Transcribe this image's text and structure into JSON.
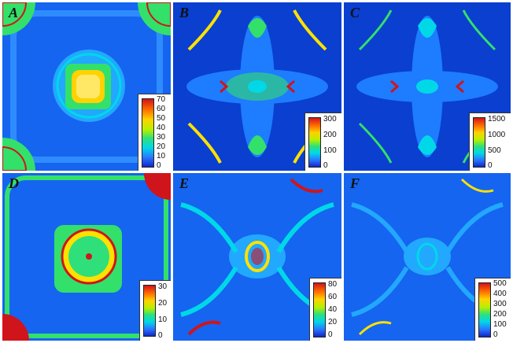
{
  "panels": [
    {
      "label": "A",
      "ticks": [
        "70",
        "60",
        "50",
        "40",
        "30",
        "20",
        "10",
        "0"
      ]
    },
    {
      "label": "B",
      "ticks": [
        "300",
        "200",
        "100",
        "0"
      ]
    },
    {
      "label": "C",
      "ticks": [
        "1500",
        "1000",
        "500",
        "0"
      ]
    },
    {
      "label": "D",
      "ticks": [
        "30",
        "20",
        "10",
        "0"
      ]
    },
    {
      "label": "E",
      "ticks": [
        "80",
        "60",
        "40",
        "20",
        "0"
      ]
    },
    {
      "label": "F",
      "ticks": [
        "500",
        "400",
        "300",
        "200",
        "100",
        "0"
      ]
    }
  ],
  "colors": {
    "background_field": "#0a3fd0",
    "mid_field": "#1e7cff",
    "cyan": "#00d8e8",
    "green": "#33e06a",
    "yellow": "#ffe100",
    "red": "#d0141b"
  }
}
